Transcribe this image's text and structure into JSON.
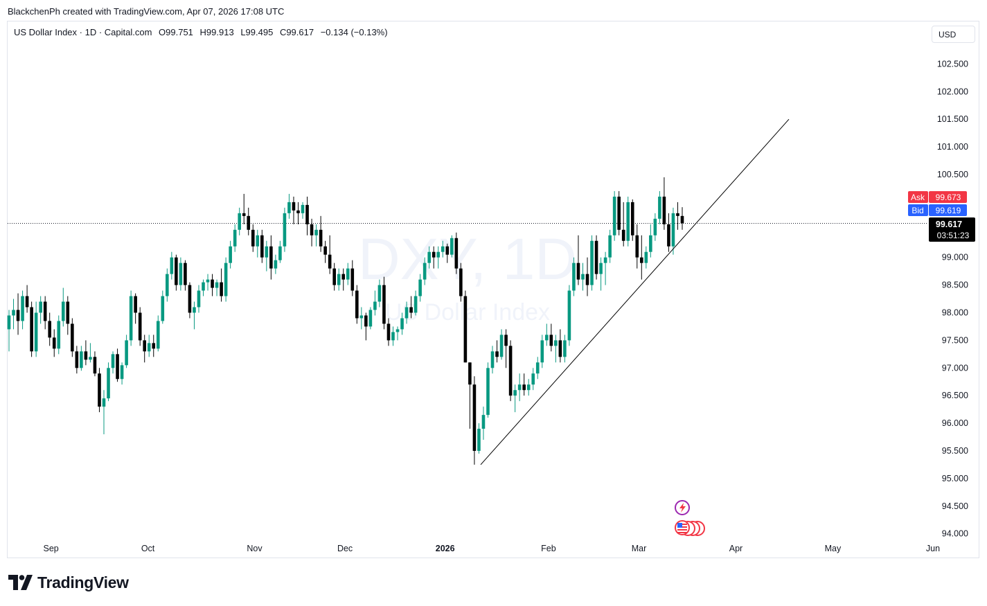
{
  "header": {
    "attribution": "BlackchenPh created with TradingView.com, Apr 07, 2026 17:08 UTC"
  },
  "legend": {
    "symbol": "US Dollar Index · 1D · Capital.com",
    "open": "O99.751",
    "high": "H99.913",
    "low": "L99.495",
    "close": "C99.617",
    "change": "−0.134 (−0.13%)"
  },
  "currency_button": "USD",
  "watermark": {
    "ticker": "DXY, 1D",
    "name": "US Dollar Index"
  },
  "price_tags": {
    "ask_label": "Ask",
    "ask_value": "99.673",
    "bid_label": "Bid",
    "bid_value": "99.619",
    "last_value": "99.617",
    "countdown": "03:51:23"
  },
  "brand": {
    "name": "TradingView"
  },
  "colors": {
    "up": "#089981",
    "down": "#000000",
    "ask": "#f23645",
    "bid": "#2962ff",
    "last": "#000000",
    "trendline": "#000000"
  },
  "icons": [
    "flash-event-icon",
    "us-flag-event-icon"
  ],
  "chart_data": {
    "type": "candlestick",
    "y_axis_labels": [
      "102.500",
      "102.000",
      "101.500",
      "101.000",
      "100.500",
      "99.000",
      "98.500",
      "98.000",
      "97.500",
      "97.000",
      "96.500",
      "96.000",
      "95.500",
      "95.000",
      "94.500",
      "94.000"
    ],
    "ylim": [
      93.9,
      103.1
    ],
    "x_axis_labels": [
      "Sep",
      "Oct",
      "Nov",
      "Dec",
      "2026",
      "Feb",
      "Mar",
      "Apr",
      "May",
      "Jun"
    ],
    "last_price": 99.617,
    "trendline": {
      "from": [
        "2026-01-27",
        95.25
      ],
      "to": [
        "2026-05-10",
        101.5
      ]
    },
    "ohlc": [
      [
        97.7,
        98.05,
        97.3,
        97.95
      ],
      [
        97.95,
        98.25,
        97.7,
        98.05
      ],
      [
        98.05,
        98.35,
        97.6,
        97.85
      ],
      [
        97.85,
        98.4,
        97.7,
        98.3
      ],
      [
        98.3,
        98.5,
        98.0,
        98.1
      ],
      [
        98.1,
        98.2,
        97.2,
        97.3
      ],
      [
        97.3,
        98.2,
        97.2,
        98.0
      ],
      [
        98.0,
        98.3,
        97.8,
        98.2
      ],
      [
        98.2,
        98.3,
        97.7,
        97.85
      ],
      [
        97.85,
        98.0,
        97.4,
        97.55
      ],
      [
        97.55,
        97.7,
        97.2,
        97.35
      ],
      [
        97.35,
        97.95,
        97.25,
        97.85
      ],
      [
        97.85,
        98.45,
        97.75,
        98.2
      ],
      [
        98.2,
        98.3,
        97.6,
        97.8
      ],
      [
        97.8,
        97.9,
        97.2,
        97.3
      ],
      [
        97.3,
        97.4,
        96.9,
        97.0
      ],
      [
        97.0,
        97.4,
        96.95,
        97.3
      ],
      [
        97.3,
        97.5,
        97.05,
        97.15
      ],
      [
        97.15,
        97.45,
        97.1,
        97.2
      ],
      [
        97.2,
        97.3,
        96.85,
        96.9
      ],
      [
        96.9,
        97.0,
        96.2,
        96.3
      ],
      [
        96.3,
        96.6,
        95.8,
        96.45
      ],
      [
        96.45,
        97.1,
        96.4,
        97.0
      ],
      [
        97.0,
        97.3,
        96.9,
        97.25
      ],
      [
        97.25,
        97.35,
        96.75,
        96.8
      ],
      [
        96.8,
        97.1,
        96.7,
        97.05
      ],
      [
        97.05,
        97.6,
        97.0,
        97.5
      ],
      [
        97.5,
        98.4,
        97.4,
        98.3
      ],
      [
        98.3,
        98.35,
        97.8,
        98.0
      ],
      [
        98.0,
        98.1,
        97.4,
        97.5
      ],
      [
        97.5,
        97.6,
        97.1,
        97.3
      ],
      [
        97.3,
        97.6,
        97.2,
        97.45
      ],
      [
        97.45,
        97.6,
        97.2,
        97.35
      ],
      [
        97.35,
        97.95,
        97.3,
        97.85
      ],
      [
        97.85,
        98.4,
        97.8,
        98.3
      ],
      [
        98.3,
        98.8,
        98.2,
        98.7
      ],
      [
        98.7,
        99.1,
        98.6,
        99.0
      ],
      [
        99.0,
        99.05,
        98.4,
        98.5
      ],
      [
        98.5,
        99.0,
        98.4,
        98.9
      ],
      [
        98.9,
        98.95,
        98.4,
        98.5
      ],
      [
        98.5,
        98.55,
        97.9,
        98.0
      ],
      [
        98.0,
        98.2,
        97.7,
        98.1
      ],
      [
        98.1,
        98.5,
        98.0,
        98.4
      ],
      [
        98.4,
        98.6,
        98.3,
        98.55
      ],
      [
        98.55,
        98.7,
        98.4,
        98.6
      ],
      [
        98.6,
        98.7,
        98.3,
        98.45
      ],
      [
        98.45,
        98.6,
        98.3,
        98.55
      ],
      [
        98.55,
        98.8,
        98.2,
        98.3
      ],
      [
        98.3,
        99.0,
        98.2,
        98.9
      ],
      [
        98.9,
        99.3,
        98.8,
        99.2
      ],
      [
        99.2,
        99.6,
        99.1,
        99.5
      ],
      [
        99.5,
        99.9,
        99.4,
        99.8
      ],
      [
        99.8,
        100.15,
        99.6,
        99.75
      ],
      [
        99.75,
        99.9,
        99.4,
        99.5
      ],
      [
        99.5,
        99.6,
        99.1,
        99.2
      ],
      [
        99.2,
        99.5,
        99.0,
        99.4
      ],
      [
        99.4,
        99.5,
        98.9,
        99.0
      ],
      [
        99.0,
        99.3,
        98.75,
        99.2
      ],
      [
        99.2,
        99.4,
        98.6,
        98.8
      ],
      [
        98.8,
        99.05,
        98.7,
        98.95
      ],
      [
        98.95,
        99.3,
        98.9,
        99.2
      ],
      [
        99.2,
        99.9,
        99.1,
        99.8
      ],
      [
        99.8,
        100.15,
        99.7,
        100.0
      ],
      [
        100.0,
        100.1,
        99.6,
        99.85
      ],
      [
        99.85,
        100.0,
        99.6,
        99.8
      ],
      [
        99.8,
        100.0,
        99.7,
        99.95
      ],
      [
        99.95,
        100.1,
        99.4,
        99.6
      ],
      [
        99.6,
        99.7,
        99.2,
        99.4
      ],
      [
        99.4,
        99.6,
        99.2,
        99.5
      ],
      [
        99.5,
        99.75,
        99.1,
        99.2
      ],
      [
        99.2,
        99.3,
        98.9,
        99.05
      ],
      [
        99.05,
        99.4,
        98.7,
        98.8
      ],
      [
        98.8,
        98.9,
        98.4,
        98.5
      ],
      [
        98.5,
        98.8,
        98.4,
        98.7
      ],
      [
        98.7,
        98.8,
        98.4,
        98.6
      ],
      [
        98.6,
        98.9,
        98.5,
        98.8
      ],
      [
        98.8,
        98.95,
        98.3,
        98.4
      ],
      [
        98.4,
        98.5,
        97.8,
        97.9
      ],
      [
        97.9,
        98.1,
        97.7,
        97.95
      ],
      [
        97.95,
        98.0,
        97.5,
        97.75
      ],
      [
        97.75,
        98.1,
        97.7,
        98.05
      ],
      [
        98.05,
        98.4,
        97.95,
        98.2
      ],
      [
        98.2,
        98.6,
        98.1,
        98.5
      ],
      [
        98.5,
        98.65,
        97.7,
        97.8
      ],
      [
        97.8,
        97.9,
        97.4,
        97.5
      ],
      [
        97.5,
        97.75,
        97.4,
        97.65
      ],
      [
        97.65,
        97.75,
        97.5,
        97.7
      ],
      [
        97.7,
        98.0,
        97.6,
        97.9
      ],
      [
        97.9,
        98.2,
        97.8,
        98.1
      ],
      [
        98.1,
        98.3,
        97.9,
        98.0
      ],
      [
        98.0,
        98.4,
        97.95,
        98.3
      ],
      [
        98.3,
        98.7,
        98.2,
        98.6
      ],
      [
        98.6,
        99.0,
        98.5,
        98.9
      ],
      [
        98.9,
        99.2,
        98.8,
        99.1
      ],
      [
        99.1,
        99.2,
        98.8,
        99.0
      ],
      [
        99.0,
        99.2,
        98.8,
        99.1
      ],
      [
        99.1,
        99.3,
        99.0,
        99.2
      ],
      [
        99.2,
        99.25,
        98.9,
        99.05
      ],
      [
        99.05,
        99.4,
        99.0,
        99.35
      ],
      [
        99.35,
        99.45,
        98.7,
        98.8
      ],
      [
        98.8,
        98.9,
        98.2,
        98.3
      ],
      [
        98.3,
        98.4,
        97.1,
        97.1
      ],
      [
        97.1,
        97.1,
        95.9,
        96.7
      ],
      [
        96.7,
        96.85,
        95.25,
        95.5
      ],
      [
        95.5,
        96.0,
        95.45,
        95.9
      ],
      [
        95.9,
        96.3,
        95.7,
        96.15
      ],
      [
        96.15,
        97.1,
        96.1,
        97.0
      ],
      [
        97.0,
        97.4,
        96.9,
        97.3
      ],
      [
        97.3,
        97.5,
        97.1,
        97.2
      ],
      [
        97.2,
        97.7,
        97.15,
        97.6
      ],
      [
        97.6,
        97.7,
        97.0,
        97.4
      ],
      [
        97.4,
        97.5,
        96.4,
        96.5
      ],
      [
        96.5,
        96.7,
        96.2,
        96.6
      ],
      [
        96.6,
        96.9,
        96.4,
        96.7
      ],
      [
        96.7,
        96.9,
        96.5,
        96.6
      ],
      [
        96.6,
        96.8,
        96.5,
        96.7
      ],
      [
        96.7,
        97.0,
        96.6,
        96.9
      ],
      [
        96.9,
        97.2,
        96.8,
        97.1
      ],
      [
        97.1,
        97.6,
        97.0,
        97.5
      ],
      [
        97.5,
        97.8,
        97.4,
        97.6
      ],
      [
        97.6,
        97.8,
        97.3,
        97.4
      ],
      [
        97.4,
        97.6,
        97.1,
        97.5
      ],
      [
        97.5,
        97.7,
        97.1,
        97.2
      ],
      [
        97.2,
        97.6,
        97.1,
        97.5
      ],
      [
        97.5,
        98.5,
        97.4,
        98.4
      ],
      [
        98.4,
        99.0,
        98.3,
        98.9
      ],
      [
        98.9,
        99.4,
        98.5,
        98.6
      ],
      [
        98.6,
        98.9,
        98.4,
        98.7
      ],
      [
        98.7,
        99.0,
        98.3,
        98.5
      ],
      [
        98.5,
        99.4,
        98.4,
        99.3
      ],
      [
        99.3,
        99.4,
        98.6,
        98.7
      ],
      [
        98.7,
        99.0,
        98.4,
        98.9
      ],
      [
        98.9,
        99.1,
        98.5,
        99.0
      ],
      [
        99.0,
        99.5,
        98.9,
        99.4
      ],
      [
        99.4,
        100.2,
        99.3,
        100.1
      ],
      [
        100.1,
        100.2,
        99.4,
        99.5
      ],
      [
        99.5,
        100.0,
        99.2,
        99.3
      ],
      [
        99.3,
        100.1,
        99.2,
        100.0
      ],
      [
        100.0,
        100.05,
        99.3,
        99.4
      ],
      [
        99.4,
        99.6,
        98.8,
        99.0
      ],
      [
        99.0,
        99.4,
        98.6,
        98.9
      ],
      [
        98.9,
        99.2,
        98.8,
        99.1
      ],
      [
        99.1,
        99.6,
        99.0,
        99.4
      ],
      [
        99.4,
        99.8,
        99.3,
        99.7
      ],
      [
        99.7,
        100.2,
        99.6,
        100.1
      ],
      [
        100.1,
        100.45,
        99.5,
        99.6
      ],
      [
        99.6,
        99.8,
        99.1,
        99.2
      ],
      [
        99.2,
        99.9,
        99.05,
        99.8
      ],
      [
        99.8,
        100.0,
        99.5,
        99.75
      ],
      [
        99.75,
        99.91,
        99.5,
        99.62
      ]
    ]
  }
}
